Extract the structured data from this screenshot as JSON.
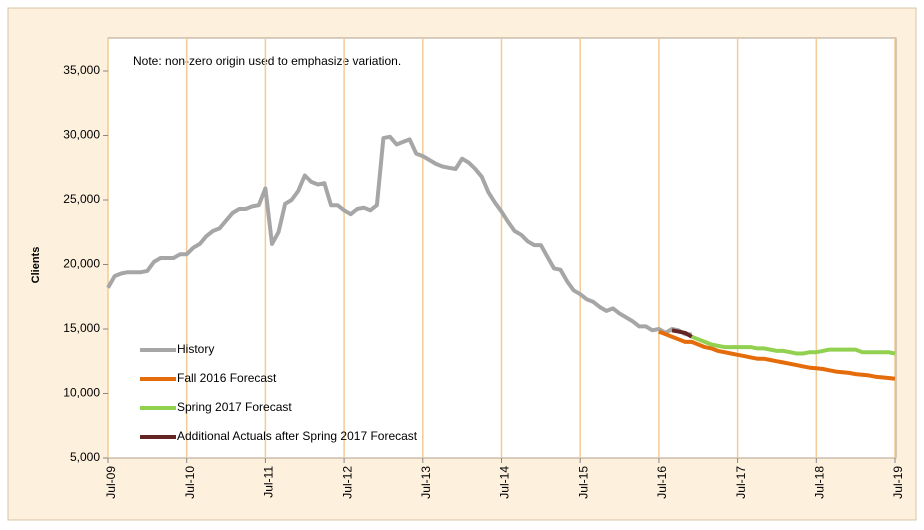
{
  "chart_data": {
    "type": "line",
    "y_label": "Clients",
    "annotation": "Note: non-zero origin used to emphasize variation.",
    "categories": [
      "Jul-09",
      null,
      null,
      null,
      null,
      null,
      null,
      null,
      null,
      null,
      null,
      null,
      "Jul-10",
      null,
      null,
      null,
      null,
      null,
      null,
      null,
      null,
      null,
      null,
      null,
      "Jul-11",
      null,
      null,
      null,
      null,
      null,
      null,
      null,
      null,
      null,
      null,
      null,
      "Jul-12",
      null,
      null,
      null,
      null,
      null,
      null,
      null,
      null,
      null,
      null,
      null,
      "Jul-13",
      null,
      null,
      null,
      null,
      null,
      null,
      null,
      null,
      null,
      null,
      null,
      "Jul-14",
      null,
      null,
      null,
      null,
      null,
      null,
      null,
      null,
      null,
      null,
      null,
      "Jul-15",
      null,
      null,
      null,
      null,
      null,
      null,
      null,
      null,
      null,
      null,
      null,
      "Jul-16",
      null,
      null,
      null,
      null,
      null,
      null,
      null,
      null,
      null,
      null,
      null,
      "Jul-17",
      null,
      null,
      null,
      null,
      null,
      null,
      null,
      null,
      null,
      null,
      null,
      "Jul-18",
      null,
      null,
      null,
      null,
      null,
      null,
      null,
      null,
      null,
      null,
      null,
      "Jul-19"
    ],
    "series": [
      {
        "name": "History",
        "color": "#a6a6a6",
        "values": [
          18200,
          19100,
          19300,
          19400,
          19400,
          19400,
          19500,
          20200,
          20500,
          20500,
          20500,
          20800,
          20800,
          21300,
          21600,
          22200,
          22600,
          22800,
          23400,
          24000,
          24300,
          24300,
          24500,
          24600,
          25900,
          21600,
          22500,
          24700,
          25000,
          25700,
          26900,
          26400,
          26200,
          26300,
          24600,
          24600,
          24200,
          23900,
          24300,
          24400,
          24200,
          24600,
          29800,
          29900,
          29300,
          29500,
          29700,
          28600,
          28400,
          28100,
          27800,
          27600,
          27500,
          27400,
          28200,
          27900,
          27400,
          26800,
          25600,
          24800,
          24100,
          23300,
          22600,
          22300,
          21800,
          21500,
          21500,
          20600,
          19700,
          19600,
          18700,
          18000,
          17700,
          17300,
          17100,
          16700,
          16400,
          16600,
          16200,
          15900,
          15600,
          15200,
          15200,
          14900,
          15000,
          14700,
          15000,
          14900,
          14600,
          14600,
          null,
          null,
          null,
          null,
          null,
          null,
          null,
          null,
          null,
          null,
          null,
          null,
          null,
          null,
          null,
          null,
          null,
          null,
          null,
          null,
          null,
          null,
          null,
          null,
          null,
          null,
          null,
          null,
          null,
          null,
          null
        ]
      },
      {
        "name": "Fall 2016 Forecast",
        "color": "#e46c0a",
        "values": [
          null,
          null,
          null,
          null,
          null,
          null,
          null,
          null,
          null,
          null,
          null,
          null,
          null,
          null,
          null,
          null,
          null,
          null,
          null,
          null,
          null,
          null,
          null,
          null,
          null,
          null,
          null,
          null,
          null,
          null,
          null,
          null,
          null,
          null,
          null,
          null,
          null,
          null,
          null,
          null,
          null,
          null,
          null,
          null,
          null,
          null,
          null,
          null,
          null,
          null,
          null,
          null,
          null,
          null,
          null,
          null,
          null,
          null,
          null,
          null,
          null,
          null,
          null,
          null,
          null,
          null,
          null,
          null,
          null,
          null,
          null,
          null,
          null,
          null,
          null,
          null,
          null,
          null,
          null,
          null,
          null,
          null,
          null,
          null,
          14800,
          14600,
          14400,
          14200,
          14000,
          14000,
          13800,
          13600,
          13500,
          13300,
          13200,
          13100,
          13000,
          12900,
          12800,
          12700,
          12700,
          12600,
          12500,
          12400,
          12300,
          12200,
          12100,
          12000,
          11950,
          11900,
          11800,
          11700,
          11650,
          11600,
          11500,
          11450,
          11400,
          11300,
          11250,
          11200,
          11150
        ]
      },
      {
        "name": "Spring 2017 Forecast",
        "color": "#92d050",
        "values": [
          null,
          null,
          null,
          null,
          null,
          null,
          null,
          null,
          null,
          null,
          null,
          null,
          null,
          null,
          null,
          null,
          null,
          null,
          null,
          null,
          null,
          null,
          null,
          null,
          null,
          null,
          null,
          null,
          null,
          null,
          null,
          null,
          null,
          null,
          null,
          null,
          null,
          null,
          null,
          null,
          null,
          null,
          null,
          null,
          null,
          null,
          null,
          null,
          null,
          null,
          null,
          null,
          null,
          null,
          null,
          null,
          null,
          null,
          null,
          null,
          null,
          null,
          null,
          null,
          null,
          null,
          null,
          null,
          null,
          null,
          null,
          null,
          null,
          null,
          null,
          null,
          null,
          null,
          null,
          null,
          null,
          null,
          null,
          null,
          null,
          null,
          null,
          null,
          null,
          14400,
          14200,
          14000,
          13800,
          13700,
          13600,
          13600,
          13600,
          13600,
          13600,
          13500,
          13500,
          13400,
          13300,
          13300,
          13200,
          13100,
          13100,
          13200,
          13200,
          13300,
          13400,
          13400,
          13400,
          13400,
          13400,
          13200,
          13200,
          13200,
          13200,
          13200,
          13100
        ]
      },
      {
        "name": "Additional Actuals after Spring 2017 Forecast",
        "color": "#632523",
        "values": [
          null,
          null,
          null,
          null,
          null,
          null,
          null,
          null,
          null,
          null,
          null,
          null,
          null,
          null,
          null,
          null,
          null,
          null,
          null,
          null,
          null,
          null,
          null,
          null,
          null,
          null,
          null,
          null,
          null,
          null,
          null,
          null,
          null,
          null,
          null,
          null,
          null,
          null,
          null,
          null,
          null,
          null,
          null,
          null,
          null,
          null,
          null,
          null,
          null,
          null,
          null,
          null,
          null,
          null,
          null,
          null,
          null,
          null,
          null,
          null,
          null,
          null,
          null,
          null,
          null,
          null,
          null,
          null,
          null,
          null,
          null,
          null,
          null,
          null,
          null,
          null,
          null,
          null,
          null,
          null,
          null,
          null,
          null,
          null,
          null,
          null,
          14900,
          14800,
          14700,
          14400,
          null,
          null,
          null,
          null,
          null,
          null,
          null,
          null,
          null,
          null,
          null,
          null,
          null,
          null,
          null,
          null,
          null,
          null,
          null,
          null,
          null,
          null,
          null,
          null,
          null,
          null,
          null,
          null,
          null,
          null,
          null
        ]
      }
    ],
    "ylim": [
      5000,
      35000
    ],
    "yticks": [
      {
        "value": 5000,
        "label": "5,000"
      },
      {
        "value": 10000,
        "label": "10,000"
      },
      {
        "value": 15000,
        "label": "15,000"
      },
      {
        "value": 20000,
        "label": "20,000"
      },
      {
        "value": 25000,
        "label": "25,000"
      },
      {
        "value": 30000,
        "label": "30,000"
      },
      {
        "value": 35000,
        "label": "35,000"
      }
    ],
    "grid": true
  }
}
